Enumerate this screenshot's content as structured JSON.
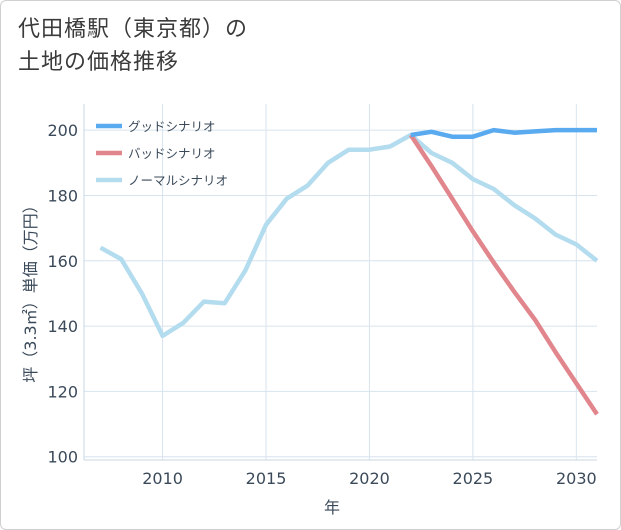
{
  "page": {
    "title": "代田橋駅（東京都）の\n土地の価格推移"
  },
  "chart_data": {
    "type": "line",
    "title": "代田橋駅（東京都）の土地の価格推移",
    "xlabel": "年",
    "ylabel": "坪（3.3㎡）単価（万円）",
    "xlim": [
      2006.2,
      2031
    ],
    "ylim": [
      99,
      208
    ],
    "xticks": [
      2010,
      2015,
      2020,
      2025,
      2030
    ],
    "yticks": [
      100,
      120,
      140,
      160,
      180,
      200
    ],
    "grid": true,
    "legend_position": "top-left",
    "series": [
      {
        "name": "グッドシナリオ",
        "color": "#5aaaf0",
        "x": [
          2022,
          2023,
          2024,
          2025,
          2026,
          2027,
          2028,
          2029,
          2030,
          2031
        ],
        "y": [
          198.5,
          199.5,
          198,
          198,
          200,
          199.2,
          199.6,
          200,
          200,
          200
        ]
      },
      {
        "name": "バッドシナリオ",
        "color": "#e0868c",
        "x": [
          2022,
          2023,
          2024,
          2025,
          2026,
          2027,
          2028,
          2029,
          2030,
          2031
        ],
        "y": [
          198.5,
          189,
          179,
          169,
          159.5,
          150.5,
          142,
          132,
          122.5,
          113
        ]
      },
      {
        "name": "ノーマルシナリオ",
        "color": "#b4dcef",
        "x": [
          2007,
          2008,
          2009,
          2010,
          2011,
          2012,
          2013,
          2014,
          2015,
          2016,
          2017,
          2018,
          2019,
          2020,
          2021,
          2022,
          2023,
          2024,
          2025,
          2026,
          2027,
          2028,
          2029,
          2030,
          2031
        ],
        "y": [
          164,
          160.5,
          150,
          137,
          141,
          147.5,
          147,
          157,
          171,
          179,
          183,
          190,
          194,
          194,
          195,
          198.5,
          193,
          190,
          185,
          182,
          177,
          173,
          168,
          165,
          160
        ]
      }
    ]
  }
}
